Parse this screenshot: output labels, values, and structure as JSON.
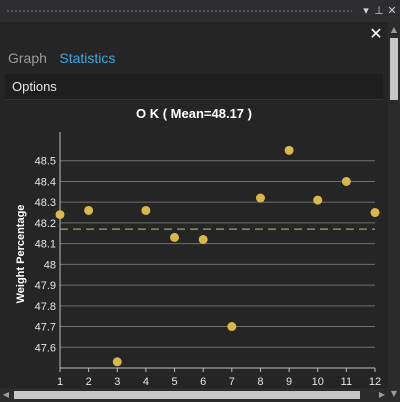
{
  "window": {
    "icons": [
      "dropdown-arrow-icon",
      "pin-icon",
      "close-icon"
    ],
    "close_symbol": "✕"
  },
  "tabs": [
    {
      "label": "Graph",
      "active": false
    },
    {
      "label": "Statistics",
      "active": true
    }
  ],
  "options_label": "Options",
  "colors": {
    "background": "#252526",
    "point": "#d8b84a",
    "mean_line": "#9aa36a",
    "grid": "#6e6e6e",
    "active_tab": "#3fa7e0"
  },
  "chart_data": {
    "type": "scatter",
    "title": "O  K ( Mean=48.17 )",
    "xlabel": "",
    "ylabel": "Weight Percentage",
    "xlim": [
      1,
      12
    ],
    "ylim": [
      47.5,
      48.6
    ],
    "x_ticks": [
      1,
      2,
      3,
      4,
      5,
      6,
      7,
      8,
      9,
      10,
      11,
      12
    ],
    "y_ticks": [
      47.6,
      47.7,
      47.8,
      47.9,
      48,
      48.1,
      48.2,
      48.3,
      48.4,
      48.5
    ],
    "mean": 48.17,
    "grid": true,
    "points": [
      {
        "x": 1,
        "y": 48.24
      },
      {
        "x": 2,
        "y": 48.26
      },
      {
        "x": 3,
        "y": 47.53
      },
      {
        "x": 4,
        "y": 48.26
      },
      {
        "x": 5,
        "y": 48.13
      },
      {
        "x": 6,
        "y": 48.12
      },
      {
        "x": 7,
        "y": 47.7
      },
      {
        "x": 8,
        "y": 48.32
      },
      {
        "x": 9,
        "y": 48.55
      },
      {
        "x": 10,
        "y": 48.31
      },
      {
        "x": 11,
        "y": 48.4
      },
      {
        "x": 12,
        "y": 48.25
      }
    ]
  }
}
